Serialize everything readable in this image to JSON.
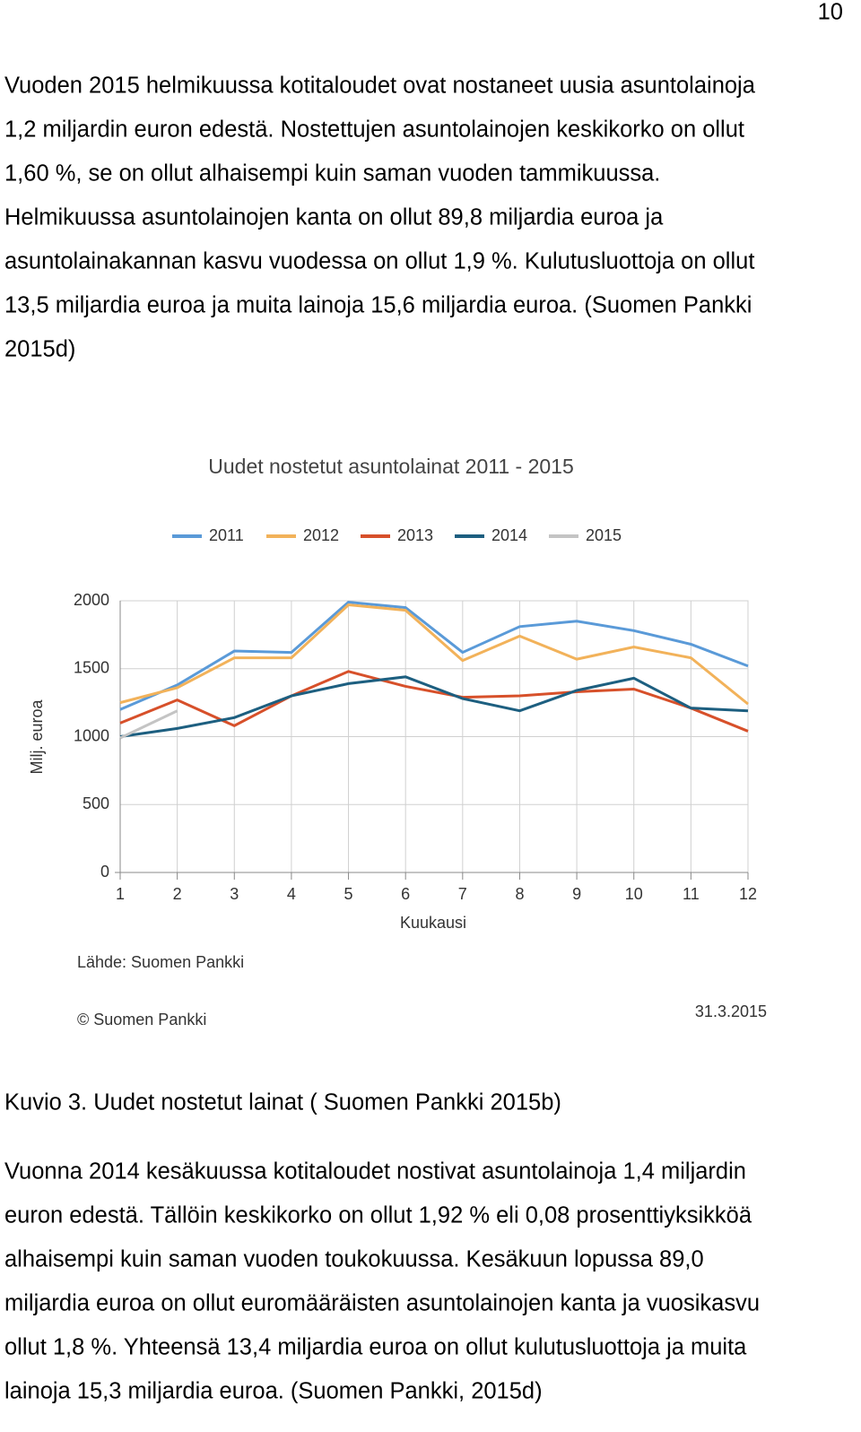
{
  "page_number": "10",
  "paragraphs": [
    [
      "Vuoden 2015 helmikuussa kotitaloudet ovat nostaneet uusia asuntolainoja",
      "1,2 miljardin euron edestä. Nostettujen asuntolainojen keskikorko on ollut",
      "1,60 %, se on ollut alhaisempi kuin saman vuoden tammikuussa.",
      "Helmikuussa asuntolainojen kanta on ollut 89,8 miljardia euroa ja",
      "asuntolainakannan kasvu vuodessa on ollut 1,9 %. Kulutusluottoja on ollut",
      "13,5 miljardia euroa ja muita lainoja 15,6 miljardia euroa. (Suomen Pankki",
      "2015d)"
    ],
    [
      "Vuonna 2014 kesäkuussa kotitaloudet nostivat asuntolainoja 1,4 miljardin",
      "euron edestä. Tällöin keskikorko on ollut 1,92 % eli 0,08 prosenttiyksikköä",
      "alhaisempi kuin saman vuoden toukokuussa. Kesäkuun lopussa 89,0",
      "miljardia euroa on ollut euromääräisten asuntolainojen kanta ja vuosikasvu",
      "ollut 1,8 %. Yhteensä 13,4 miljardia euroa on ollut kulutusluottoja ja muita",
      "lainoja 15,3 miljardia euroa. (Suomen Pankki, 2015d)"
    ]
  ],
  "caption": "Kuvio 3. Uudet nostetut lainat ( Suomen Pankki 2015b)",
  "chart_data": {
    "type": "line",
    "title": "Uudet nostetut asuntolainat 2011 - 2015",
    "x_label": "Kuukausi",
    "y_label": "Milj. euroa",
    "source": "Lähde: Suomen Pankki",
    "copyright": "© Suomen Pankki",
    "date": "31.3.2015",
    "x": [
      1,
      2,
      3,
      4,
      5,
      6,
      7,
      8,
      9,
      10,
      11,
      12
    ],
    "xlim": [
      1,
      12
    ],
    "xticks": [
      1,
      2,
      3,
      4,
      5,
      6,
      7,
      8,
      9,
      10,
      11,
      12
    ],
    "ylim": [
      0,
      2000
    ],
    "yticks": [
      0,
      500,
      1000,
      1500,
      2000
    ],
    "grid": true,
    "legend": "top",
    "series": [
      {
        "name": "2011",
        "color": "#5a9ad8",
        "values": [
          1200,
          1380,
          1630,
          1620,
          1990,
          1950,
          1620,
          1810,
          1850,
          1780,
          1680,
          1520
        ]
      },
      {
        "name": "2012",
        "color": "#f2b25a",
        "values": [
          1250,
          1360,
          1580,
          1580,
          1970,
          1930,
          1560,
          1740,
          1570,
          1660,
          1580,
          1240
        ]
      },
      {
        "name": "2013",
        "color": "#d7502a",
        "values": [
          1100,
          1270,
          1080,
          1300,
          1480,
          1370,
          1290,
          1300,
          1330,
          1350,
          1210,
          1040
        ]
      },
      {
        "name": "2014",
        "color": "#1d5f80",
        "values": [
          1000,
          1060,
          1140,
          1300,
          1390,
          1440,
          1280,
          1190,
          1340,
          1430,
          1210,
          1190
        ]
      },
      {
        "name": "2015",
        "color": "#c4c4c4",
        "values": [
          990,
          1190,
          null,
          null,
          null,
          null,
          null,
          null,
          null,
          null,
          null,
          null
        ]
      }
    ]
  }
}
